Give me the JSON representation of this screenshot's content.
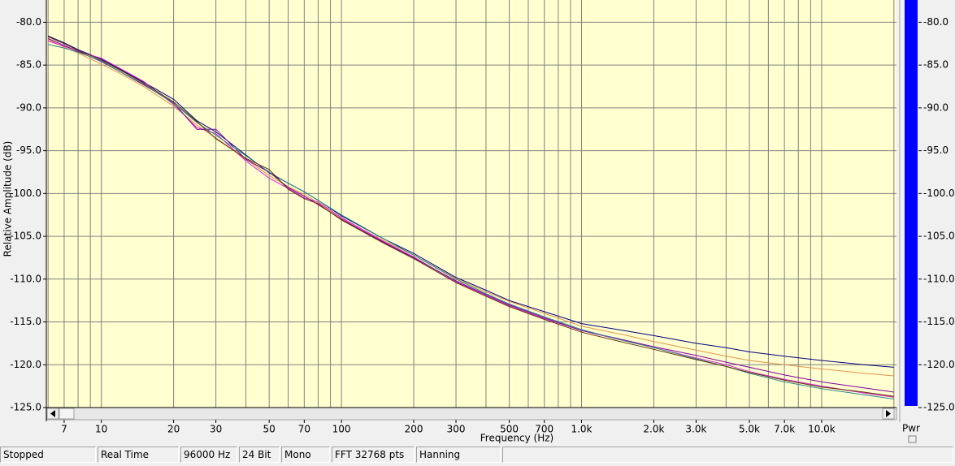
{
  "chart_data": {
    "type": "line",
    "x_label": "Frequency (Hz)",
    "y_label": "Relative Amplitude (dB)",
    "x": [
      6,
      7,
      8,
      10,
      12,
      15,
      20,
      25,
      30,
      40,
      50,
      60,
      70,
      80,
      100,
      150,
      200,
      300,
      400,
      500,
      700,
      1000,
      1500,
      2000,
      3000,
      4000,
      5000,
      7000,
      10000,
      15000,
      20000
    ],
    "series": [
      {
        "color": "#000080",
        "values": [
          -81.6,
          -82.4,
          -83.2,
          -84.3,
          -85.5,
          -87,
          -89,
          -91.5,
          -92.8,
          -95.5,
          -97.6,
          -98.8,
          -99.8,
          -100.8,
          -102.6,
          -105.3,
          -107,
          -109.8,
          -111.3,
          -112.5,
          -113.8,
          -115.2,
          -116,
          -116.6,
          -117.5,
          -118,
          -118.5,
          -119,
          -119.5,
          -120,
          -120.3
        ]
      },
      {
        "color": "#e0954a",
        "values": [
          -82,
          -82.9,
          -83.6,
          -84.9,
          -86,
          -87.5,
          -89.8,
          -92,
          -93.5,
          -96,
          -97.9,
          -99.2,
          -100.1,
          -101.1,
          -102.9,
          -105.5,
          -107.2,
          -109.9,
          -111.5,
          -112.6,
          -114,
          -115.5,
          -116.5,
          -117.3,
          -118.3,
          -119,
          -119.5,
          -120,
          -120.5,
          -121,
          -121.3
        ]
      },
      {
        "color": "#e020e0",
        "values": [
          -82.2,
          -82.8,
          -83.4,
          -84.2,
          -85.4,
          -86.9,
          -89.6,
          -92.3,
          -93,
          -96.2,
          -98.2,
          -99.4,
          -100.5,
          -101,
          -102.8,
          -105.6,
          -107.4,
          -110.3,
          -111.9,
          -113.1,
          -114.6,
          -116,
          -117.2,
          -118,
          -119.2,
          -120,
          -120.8,
          -121.7,
          -122.5,
          -123.3,
          -123.8
        ]
      },
      {
        "color": "#8000a0",
        "values": [
          -81.9,
          -82.7,
          -83.4,
          -84.6,
          -85.8,
          -87.3,
          -89.4,
          -92.5,
          -92.5,
          -96,
          -97.5,
          -99.3,
          -100.3,
          -101.3,
          -103,
          -105.7,
          -107.5,
          -110.2,
          -111.8,
          -113,
          -114.5,
          -116,
          -117.1,
          -117.9,
          -118.9,
          -119.7,
          -120.3,
          -121.2,
          -122,
          -122.7,
          -123.2
        ]
      },
      {
        "color": "#2a8a8a",
        "values": [
          -82.6,
          -83,
          -83.5,
          -84.5,
          -85.8,
          -87.2,
          -89.5,
          -91.7,
          -93.2,
          -95.6,
          -97.5,
          -98.8,
          -99.8,
          -100.8,
          -102.5,
          -105.3,
          -107.2,
          -110,
          -111.7,
          -112.9,
          -114.4,
          -115.9,
          -117.2,
          -118,
          -119.3,
          -120.2,
          -121,
          -122,
          -122.8,
          -123.5,
          -124
        ]
      },
      {
        "color": "#603000",
        "values": [
          -81.7,
          -82.5,
          -83.3,
          -84.4,
          -85.6,
          -87.1,
          -89.3,
          -91.6,
          -93.6,
          -95.9,
          -97.2,
          -99.5,
          -100.6,
          -101.2,
          -103.1,
          -105.8,
          -107.6,
          -110.4,
          -112,
          -113.2,
          -114.7,
          -116.2,
          -117.4,
          -118.2,
          -119.4,
          -120.2,
          -120.9,
          -121.8,
          -122.6,
          -123.2,
          -123.7
        ]
      }
    ],
    "x_log": true,
    "xlim": [
      5.9,
      20500
    ],
    "ylim": [
      -125,
      -77.4
    ],
    "xticks": [
      7,
      10,
      20,
      30,
      50,
      70,
      100,
      200,
      300,
      500,
      700,
      {
        "value": 1000,
        "label": "1.0k"
      },
      {
        "value": 2000,
        "label": "2.0k"
      },
      {
        "value": 3000,
        "label": "3.0k"
      },
      {
        "value": 5000,
        "label": "5.0k"
      },
      {
        "value": 7000,
        "label": "7.0k"
      },
      {
        "value": 10000,
        "label": "10.0k"
      }
    ],
    "xgrid": [
      6,
      7,
      8,
      9,
      10,
      20,
      30,
      40,
      50,
      60,
      70,
      80,
      90,
      100,
      200,
      300,
      400,
      500,
      600,
      700,
      800,
      900,
      1000,
      2000,
      3000,
      4000,
      5000,
      6000,
      7000,
      8000,
      9000,
      10000,
      20000
    ],
    "yticks": [
      {
        "value": -80,
        "label": "-80.0"
      },
      {
        "value": -85,
        "label": "-85.0"
      },
      {
        "value": -90,
        "label": "-90.0"
      },
      {
        "value": -95,
        "label": "-95.0"
      },
      {
        "value": -100,
        "label": "-100.0"
      },
      {
        "value": -105,
        "label": "-105.0"
      },
      {
        "value": -110,
        "label": "-110.0"
      },
      {
        "value": -115,
        "label": "-115.0"
      },
      {
        "value": -120,
        "label": "-120.0"
      },
      {
        "value": -125,
        "label": "-125.0"
      }
    ],
    "grid": true,
    "background": "#ffffd0"
  },
  "meter": {
    "label": "Pwr",
    "color": "#0000ff"
  },
  "status_bar": [
    "Stopped",
    "Real Time",
    "96000 Hz",
    "24 Bit",
    "Mono",
    "FFT 32768 pts",
    "Hanning"
  ]
}
